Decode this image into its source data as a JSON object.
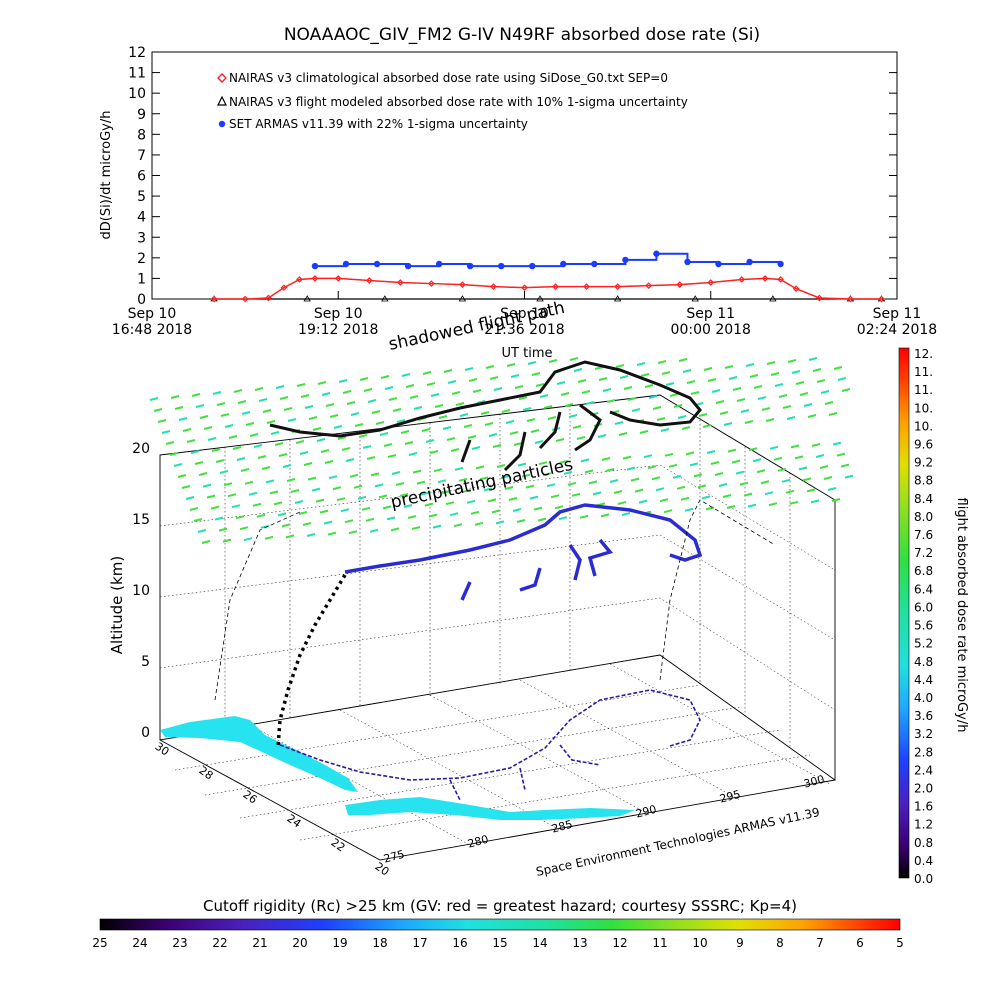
{
  "chart_data": [
    {
      "type": "scatter",
      "title": "NOAAAOC_GIV_FM2 G-IV    N49RF  absorbed dose rate (Si)",
      "ylabel": "dD(Si)/dt microGy/h",
      "xlabel": "UT time",
      "ylim": [
        0,
        12
      ],
      "yticks": [
        "0",
        "1",
        "2",
        "3",
        "4",
        "5",
        "6",
        "7",
        "8",
        "9",
        "10",
        "11",
        "12"
      ],
      "xticks": [
        {
          "line1": "Sep 10",
          "line2": "16:48 2018"
        },
        {
          "line1": "Sep 10",
          "line2": "19:12 2018"
        },
        {
          "line1": "Sep 10",
          "line2": "21:36 2018"
        },
        {
          "line1": "Sep 11",
          "line2": "00:00 2018"
        },
        {
          "line1": "Sep 11",
          "line2": "02:24 2018"
        }
      ],
      "x_range_hours_since_sep10_1648": [
        0,
        9.6
      ],
      "legend_position": "top-left",
      "series": [
        {
          "name": "NAIRAS v3 climatological absorbed dose rate using SiDose_G0.txt SEP=0",
          "color": "#ff2020",
          "marker": "diamond-open",
          "x_hours": [
            0.8,
            1.2,
            1.5,
            1.7,
            1.9,
            2.1,
            2.4,
            2.8,
            3.2,
            3.6,
            4.0,
            4.4,
            4.8,
            5.2,
            5.6,
            6.0,
            6.4,
            6.8,
            7.2,
            7.6,
            7.9,
            8.1,
            8.3,
            8.6,
            9.0,
            9.4
          ],
          "y": [
            0.0,
            0.0,
            0.05,
            0.55,
            0.95,
            1.0,
            1.0,
            0.9,
            0.8,
            0.75,
            0.7,
            0.6,
            0.55,
            0.6,
            0.6,
            0.6,
            0.65,
            0.7,
            0.8,
            0.95,
            1.0,
            0.95,
            0.5,
            0.05,
            0.0,
            0.0
          ]
        },
        {
          "name": "NAIRAS v3 flight modeled absorbed dose rate with 10% 1-sigma uncertainty",
          "color": "#000000",
          "marker": "triangle-open",
          "x_hours": [
            0.8,
            2.0,
            3.0,
            4.0,
            5.0,
            6.0,
            7.0,
            8.0,
            9.0,
            9.4
          ],
          "y": [
            0,
            0,
            0,
            0,
            0,
            0,
            0,
            0,
            0,
            0
          ]
        },
        {
          "name": "SET ARMAS v11.39 with 22% 1-sigma uncertainty",
          "color": "#1a3cff",
          "marker": "circle-filled",
          "x_hours": [
            2.1,
            2.5,
            2.9,
            3.3,
            3.7,
            4.1,
            4.5,
            4.9,
            5.3,
            5.7,
            6.1,
            6.5,
            6.9,
            7.3,
            7.7,
            8.1
          ],
          "y": [
            1.6,
            1.7,
            1.7,
            1.6,
            1.7,
            1.6,
            1.6,
            1.6,
            1.7,
            1.7,
            1.9,
            2.2,
            1.8,
            1.7,
            1.8,
            1.7
          ]
        }
      ]
    },
    {
      "type": "scatter",
      "zlabel": "Altitude (km)",
      "zticks": [
        "0",
        "5",
        "10",
        "15",
        "20"
      ],
      "lat_ticks": [
        "30",
        "28",
        "26",
        "24",
        "22",
        "20"
      ],
      "lon_ticks": [
        "275",
        "280",
        "285",
        "290",
        "295",
        "300"
      ],
      "annotations": [
        "shadowed flight path",
        "precipitating particles",
        "Space Environment Technologies ARMAS v11.39"
      ]
    }
  ],
  "colorbar_right": {
    "label": "flight absorbed dose rate microGy/h",
    "ticks": [
      "12.",
      "11.",
      "11.",
      "10.",
      "10.",
      "9.6",
      "9.2",
      "8.8",
      "8.4",
      "8.0",
      "7.6",
      "7.2",
      "6.8",
      "6.4",
      "6.0",
      "5.6",
      "5.2",
      "4.8",
      "4.4",
      "4.0",
      "3.6",
      "3.2",
      "2.8",
      "2.4",
      "2.0",
      "1.6",
      "1.2",
      "0.8",
      "0.4",
      "0.0"
    ]
  },
  "colorbar_bottom": {
    "label": "Cutoff rigidity (Rc) >25 km (GV: red = greatest hazard; courtesy SSSRC; Kp=4)",
    "ticks": [
      "25",
      "24",
      "23",
      "22",
      "21",
      "20",
      "19",
      "18",
      "17",
      "16",
      "15",
      "14",
      "13",
      "12",
      "11",
      "10",
      "9",
      "8",
      "7",
      "6",
      "5"
    ]
  }
}
